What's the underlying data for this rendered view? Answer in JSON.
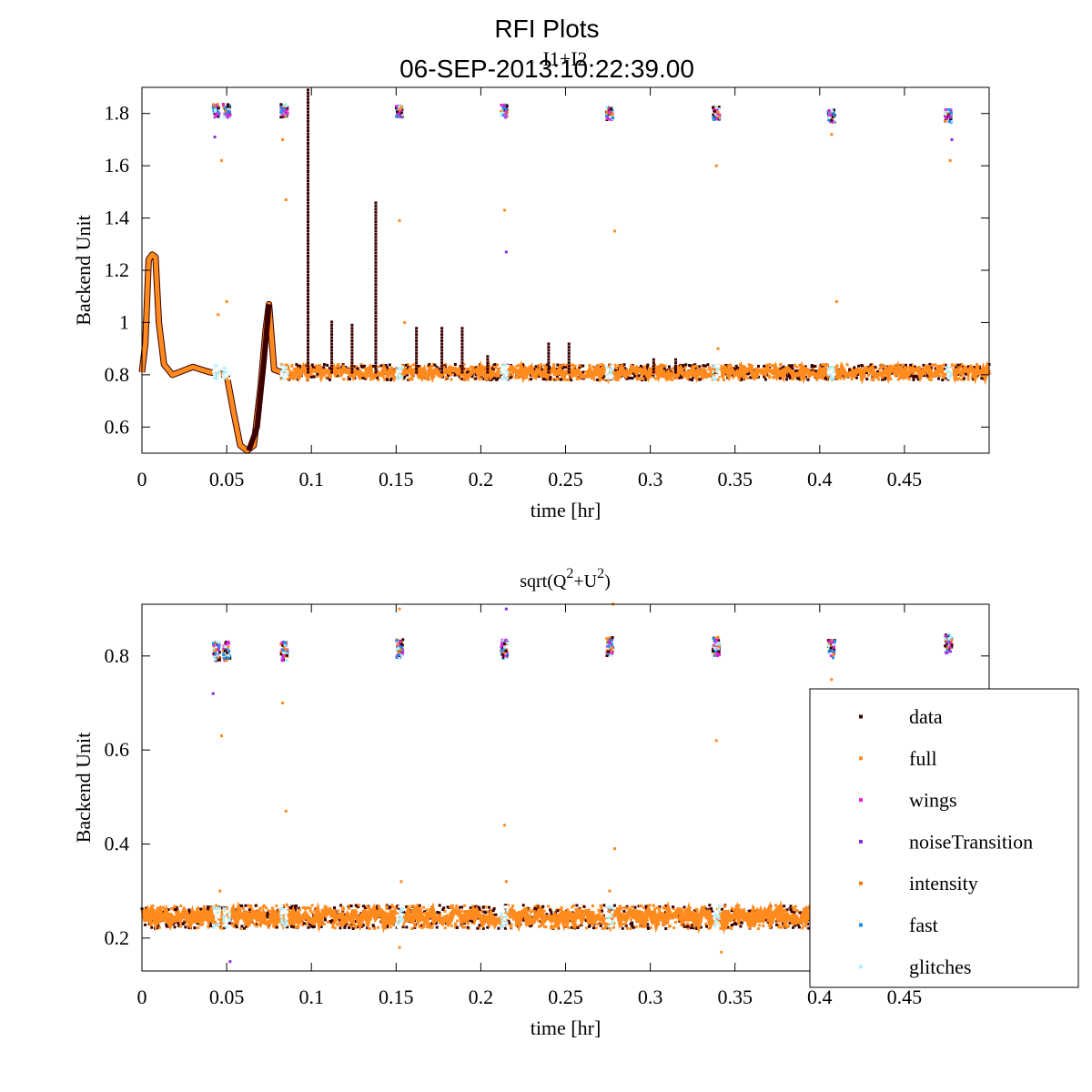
{
  "figure": {
    "title": "RFI Plots",
    "subtitle": "06-SEP-2013:10:22:39.00",
    "overlay_label": "I1+I2"
  },
  "legend": {
    "entries": [
      {
        "label": "data",
        "color": "#3a0000"
      },
      {
        "label": "full",
        "color": "#ff8a1e"
      },
      {
        "label": "wings",
        "color": "#e020e0"
      },
      {
        "label": "noiseTransition",
        "color": "#8a2be2"
      },
      {
        "label": "intensity",
        "color": "#f07a1a"
      },
      {
        "label": "fast",
        "color": "#1e8ce6"
      },
      {
        "label": "glitches",
        "color": "#b0f0ff"
      }
    ]
  },
  "chart_data": [
    {
      "type": "scatter",
      "title": "",
      "xlabel": "time [hr]",
      "ylabel": "Backend Unit",
      "xlim": [
        0,
        0.5
      ],
      "ylim": [
        0.5,
        1.9
      ],
      "xticks": [
        0,
        0.05,
        0.1,
        0.15,
        0.2,
        0.25,
        0.3,
        0.35,
        0.4,
        0.45
      ],
      "xtick_labels": [
        "0",
        "0.05",
        "0.1",
        "0.15",
        "0.2",
        "0.25",
        "0.3",
        "0.35",
        "0.4",
        "0.45"
      ],
      "yticks": [
        0.6,
        0.8,
        1.0,
        1.2,
        1.4,
        1.6,
        1.8
      ],
      "ytick_labels": [
        "0.6",
        "0.8",
        "1",
        "1.2",
        "1.4",
        "1.6",
        "1.8"
      ],
      "baseline": 0.81,
      "series": [
        {
          "name": "data",
          "color": "#3a0000",
          "spikes": [
            [
              0.098,
              1.9
            ],
            [
              0.112,
              1.01
            ],
            [
              0.124,
              1.0
            ],
            [
              0.138,
              1.47
            ],
            [
              0.162,
              0.98
            ],
            [
              0.177,
              0.99
            ],
            [
              0.189,
              0.98
            ],
            [
              0.204,
              0.88
            ],
            [
              0.24,
              0.93
            ],
            [
              0.252,
              0.92
            ],
            [
              0.302,
              0.86
            ],
            [
              0.315,
              0.86
            ]
          ]
        },
        {
          "name": "full",
          "color": "#ff8a1e",
          "curve": [
            [
              0,
              0.81
            ],
            [
              0.002,
              0.92
            ],
            [
              0.004,
              1.24
            ],
            [
              0.006,
              1.26
            ],
            [
              0.008,
              1.25
            ],
            [
              0.01,
              1.0
            ],
            [
              0.013,
              0.84
            ],
            [
              0.018,
              0.8
            ],
            [
              0.022,
              0.81
            ],
            [
              0.03,
              0.83
            ],
            [
              0.04,
              0.81
            ],
            [
              0.05,
              0.8
            ],
            [
              0.054,
              0.66
            ],
            [
              0.058,
              0.53
            ],
            [
              0.062,
              0.51
            ],
            [
              0.066,
              0.53
            ],
            [
              0.07,
              0.75
            ],
            [
              0.073,
              0.97
            ],
            [
              0.075,
              1.07
            ],
            [
              0.078,
              0.82
            ],
            [
              0.082,
              0.81
            ]
          ]
        },
        {
          "name": "glitches",
          "color": "#b0f0ff",
          "clusters": [
            [
              0.044,
              1.81
            ],
            [
              0.05,
              1.81
            ],
            [
              0.084,
              1.81
            ],
            [
              0.152,
              1.81
            ],
            [
              0.214,
              1.81
            ],
            [
              0.276,
              1.8
            ],
            [
              0.339,
              1.8
            ],
            [
              0.407,
              1.79
            ],
            [
              0.476,
              1.79
            ]
          ]
        }
      ],
      "outliers": [
        [
          0.043,
          1.71
        ],
        [
          0.047,
          1.62
        ],
        [
          0.083,
          1.7
        ],
        [
          0.085,
          1.47
        ],
        [
          0.152,
          1.39
        ],
        [
          0.214,
          1.43
        ],
        [
          0.215,
          1.27
        ],
        [
          0.279,
          1.35
        ],
        [
          0.339,
          1.6
        ],
        [
          0.407,
          1.72
        ],
        [
          0.41,
          1.08
        ],
        [
          0.477,
          1.62
        ],
        [
          0.478,
          1.7
        ],
        [
          0.155,
          1.0
        ],
        [
          0.05,
          1.08
        ],
        [
          0.045,
          1.03
        ],
        [
          0.34,
          0.9
        ]
      ]
    },
    {
      "type": "scatter",
      "title": "sqrt(Q²+U²)",
      "title_parts": {
        "a": "sqrt(Q",
        "sup1": "2",
        "b": "+U",
        "sup2": "2",
        "c": ")"
      },
      "xlabel": "time [hr]",
      "ylabel": "Backend Unit",
      "xlim": [
        0,
        0.5
      ],
      "ylim": [
        0.13,
        0.91
      ],
      "xticks": [
        0,
        0.05,
        0.1,
        0.15,
        0.2,
        0.25,
        0.3,
        0.35,
        0.4,
        0.45
      ],
      "xtick_labels": [
        "0",
        "0.05",
        "0.1",
        "0.15",
        "0.2",
        "0.25",
        "0.3",
        "0.35",
        "0.4",
        "0.45"
      ],
      "yticks": [
        0.2,
        0.4,
        0.6,
        0.8
      ],
      "ytick_labels": [
        "0.2",
        "0.4",
        "0.6",
        "0.8"
      ],
      "baseline": 0.245,
      "series": [
        {
          "name": "glitches",
          "color": "#b0f0ff",
          "clusters": [
            [
              0.044,
              0.81
            ],
            [
              0.05,
              0.81
            ],
            [
              0.084,
              0.81
            ],
            [
              0.152,
              0.815
            ],
            [
              0.214,
              0.815
            ],
            [
              0.276,
              0.82
            ],
            [
              0.339,
              0.82
            ],
            [
              0.407,
              0.815
            ],
            [
              0.476,
              0.825
            ]
          ]
        }
      ],
      "outliers": [
        [
          0.042,
          0.72
        ],
        [
          0.047,
          0.63
        ],
        [
          0.083,
          0.7
        ],
        [
          0.085,
          0.47
        ],
        [
          0.152,
          0.9
        ],
        [
          0.214,
          0.44
        ],
        [
          0.215,
          0.9
        ],
        [
          0.279,
          0.39
        ],
        [
          0.278,
          0.91
        ],
        [
          0.339,
          0.62
        ],
        [
          0.407,
          0.75
        ],
        [
          0.046,
          0.3
        ],
        [
          0.052,
          0.15
        ],
        [
          0.153,
          0.32
        ],
        [
          0.215,
          0.32
        ],
        [
          0.276,
          0.3
        ],
        [
          0.342,
          0.17
        ],
        [
          0.152,
          0.18
        ]
      ]
    }
  ]
}
